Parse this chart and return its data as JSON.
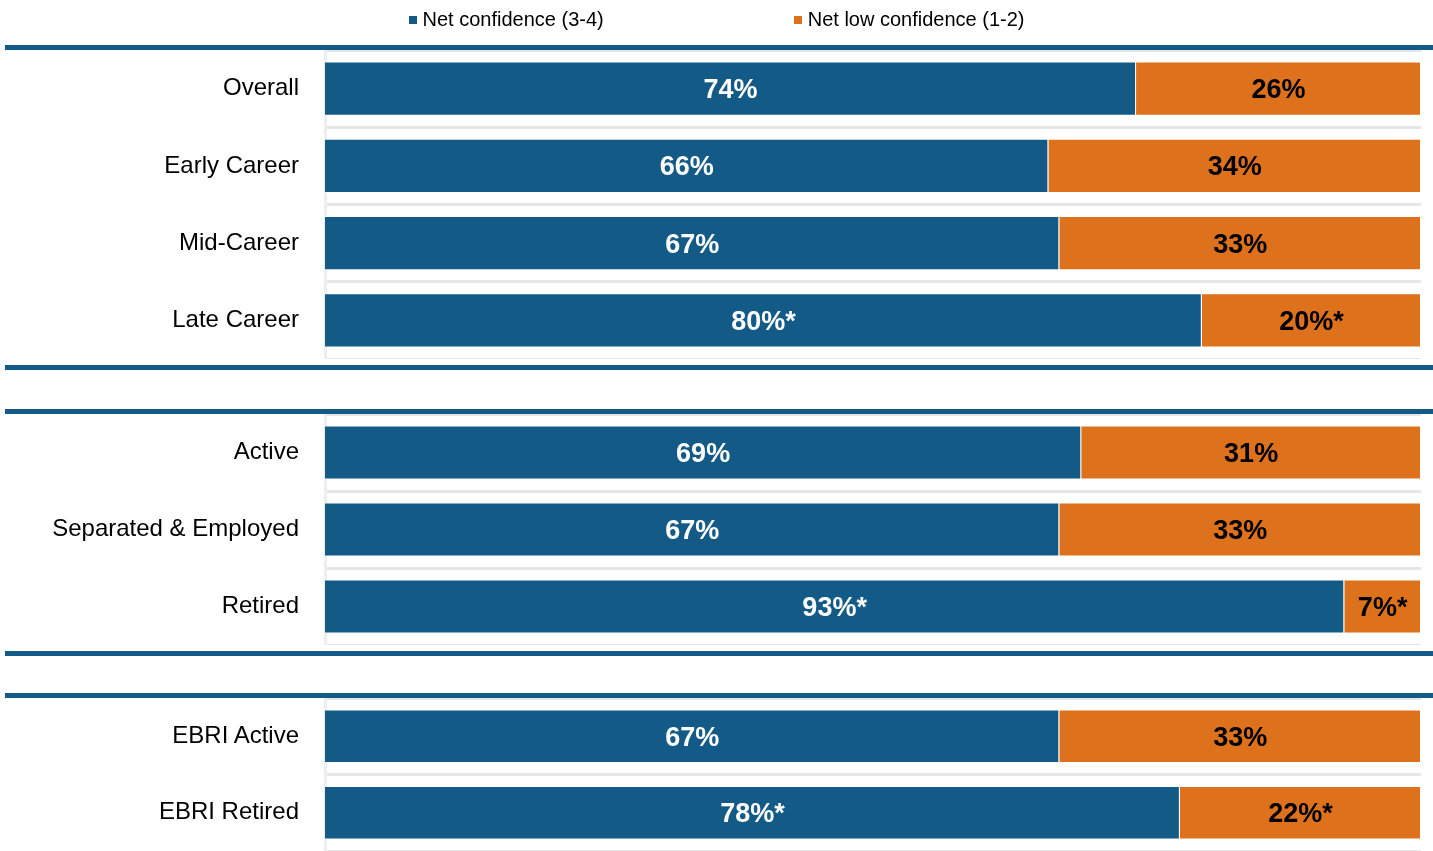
{
  "chart_data": [
    {
      "type": "bar",
      "orientation": "horizontal",
      "stacked": true,
      "legend": "top",
      "grid": "y",
      "tick_labels": "y",
      "xlim": [
        0,
        100
      ],
      "categories": [
        "Overall",
        "Early Career",
        "Mid-Career",
        "Late Career"
      ],
      "series": [
        {
          "name": "Net confidence (3-4)",
          "color": "#135a87",
          "values": [
            74,
            66,
            67,
            80
          ],
          "value_labels": [
            "74%",
            "66%",
            "67%",
            "80%*"
          ]
        },
        {
          "name": "Net low confidence (1-2)",
          "color": "#dd711c",
          "values": [
            26,
            34,
            33,
            20
          ],
          "value_labels": [
            "26%",
            "34%",
            "33%",
            "20%*"
          ]
        }
      ]
    },
    {
      "type": "bar",
      "orientation": "horizontal",
      "stacked": true,
      "grid": "y",
      "tick_labels": "y",
      "xlim": [
        0,
        100
      ],
      "categories": [
        "Active",
        "Separated & Employed",
        "Retired"
      ],
      "series": [
        {
          "color": "#135a87",
          "values": [
            69,
            67,
            93
          ],
          "value_labels": [
            "69%",
            "67%",
            "93%*"
          ]
        },
        {
          "color": "#dd711c",
          "values": [
            31,
            33,
            7
          ],
          "value_labels": [
            "31%",
            "33%",
            "7%*"
          ]
        }
      ]
    },
    {
      "type": "bar",
      "orientation": "horizontal",
      "stacked": true,
      "grid": "y",
      "tick_labels": "y",
      "xlim": [
        0,
        100
      ],
      "categories": [
        "EBRI Active",
        "EBRI Retired"
      ],
      "series": [
        {
          "color": "#135a87",
          "values": [
            67,
            78
          ],
          "value_labels": [
            "67%",
            "78%*"
          ]
        },
        {
          "color": "#dd711c",
          "values": [
            33,
            22
          ],
          "value_labels": [
            "33%",
            "22%*"
          ]
        }
      ]
    }
  ]
}
